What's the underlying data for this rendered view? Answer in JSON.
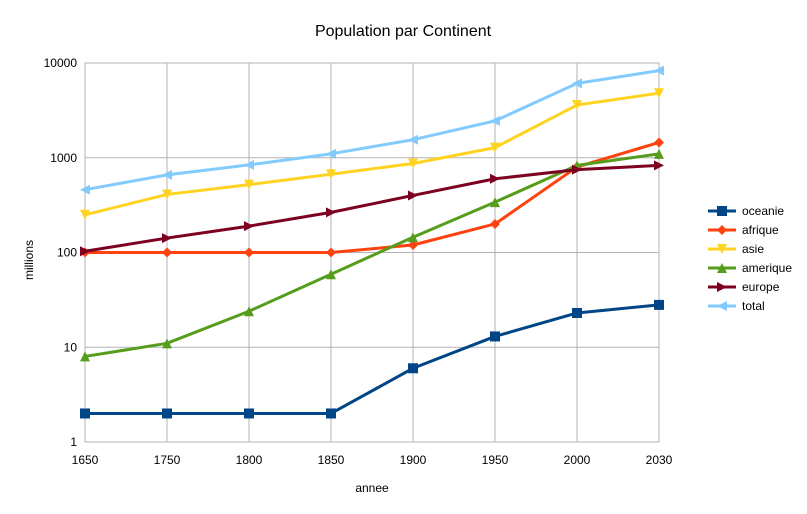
{
  "chart_data": {
    "type": "line",
    "title": "Population par Continent",
    "xlabel": "annee",
    "ylabel": "millions",
    "yscale": "log",
    "ylim": [
      1,
      10000
    ],
    "yticks": [
      {
        "value": 1,
        "label": "1"
      },
      {
        "value": 10,
        "label": "10"
      },
      {
        "value": 100,
        "label": "100"
      },
      {
        "value": 1000,
        "label": "1000"
      },
      {
        "value": 10000,
        "label": "10000"
      }
    ],
    "categories": [
      "1650",
      "1750",
      "1800",
      "1850",
      "1900",
      "1950",
      "2000",
      "2030"
    ],
    "grid": true,
    "legend_position": "right",
    "series": [
      {
        "name": "oceanie",
        "color": "#004586",
        "marker": "square",
        "values": [
          2,
          2,
          2,
          2,
          6,
          13,
          23,
          28
        ]
      },
      {
        "name": "afrique",
        "color": "#FF420E",
        "marker": "diamond",
        "values": [
          100,
          100,
          100,
          100,
          120,
          200,
          800,
          1450
        ]
      },
      {
        "name": "asie",
        "color": "#FFD320",
        "marker": "triangle-down",
        "values": [
          250,
          410,
          520,
          670,
          870,
          1280,
          3600,
          4800
        ]
      },
      {
        "name": "amerique",
        "color": "#579D1C",
        "marker": "triangle-up",
        "values": [
          8,
          11,
          24,
          59,
          145,
          340,
          830,
          1100
        ]
      },
      {
        "name": "europe",
        "color": "#7E0021",
        "marker": "triangle-right",
        "values": [
          103,
          142,
          190,
          265,
          400,
          600,
          750,
          830
        ]
      },
      {
        "name": "total",
        "color": "#83CAFF",
        "marker": "triangle-left",
        "values": [
          460,
          660,
          840,
          1100,
          1550,
          2450,
          6100,
          8300
        ]
      }
    ]
  }
}
